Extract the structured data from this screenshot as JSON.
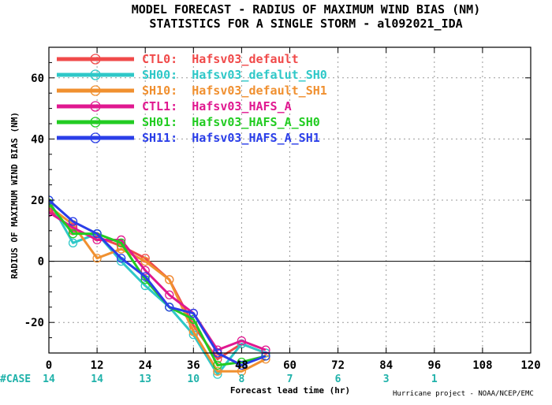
{
  "chart_data": {
    "type": "line",
    "title": "MODEL FORECAST - RADIUS OF MAXIMUM WIND BIAS (NM)",
    "subtitle": "STATISTICS FOR A SINGLE STORM - al092021_IDA",
    "xlabel": "Forecast lead time (hr)",
    "ylabel": "RADIUS OF MAXIMUM WIND BIAS (NM)",
    "xlim": [
      0,
      120
    ],
    "ylim": [
      -30,
      70
    ],
    "x_ticks": [
      "0",
      "12",
      "24",
      "36",
      "48",
      "60",
      "72",
      "84",
      "96",
      "108",
      "120"
    ],
    "y_ticks": [
      "-20",
      "0",
      "20",
      "40",
      "60"
    ],
    "grid": true,
    "legend_position": "top-left",
    "case_label": "#CASE",
    "case_counts": [
      {
        "x": 0,
        "n": "14"
      },
      {
        "x": 12,
        "n": "14"
      },
      {
        "x": 24,
        "n": "13"
      },
      {
        "x": 36,
        "n": "10"
      },
      {
        "x": 48,
        "n": "8"
      },
      {
        "x": 60,
        "n": "7"
      },
      {
        "x": 72,
        "n": "6"
      },
      {
        "x": 84,
        "n": "3"
      },
      {
        "x": 96,
        "n": "1"
      }
    ],
    "credit": "Hurricane project - NOAA/NCEP/EMC",
    "series": [
      {
        "name": "CTL0:  Hafsv03_default",
        "color": "#f04a4a",
        "x": [
          0,
          6,
          12,
          18,
          24,
          30,
          36,
          42,
          48,
          54
        ],
        "y": [
          17,
          10,
          8,
          5,
          1,
          -6,
          -21,
          -32,
          -27,
          -30
        ]
      },
      {
        "name": "SH00:  Hafsv03_defalut_SH0",
        "color": "#2fc8c8",
        "x": [
          0,
          6,
          12,
          18,
          24,
          30,
          36,
          42,
          48,
          54
        ],
        "y": [
          20,
          6,
          9,
          0,
          -8,
          -15,
          -24,
          -37,
          -27,
          -30
        ]
      },
      {
        "name": "SH10:  Hafsv03_default_SH1",
        "color": "#f09030",
        "x": [
          0,
          6,
          12,
          18,
          24,
          30,
          36,
          42,
          48,
          54
        ],
        "y": [
          18,
          12,
          1,
          4,
          0,
          -6,
          -23,
          -36,
          -36,
          -32
        ]
      },
      {
        "name": "CTL1:  Hafsv03_HAFS_A",
        "color": "#e01890",
        "x": [
          0,
          6,
          12,
          18,
          24,
          30,
          36,
          42,
          48,
          54
        ],
        "y": [
          16,
          11,
          7,
          7,
          -3,
          -11,
          -17,
          -29,
          -26,
          -29
        ]
      },
      {
        "name": "SH01:  Hafsv03_HAFS_A_SH0",
        "color": "#22cc22",
        "x": [
          0,
          6,
          12,
          18,
          24,
          30,
          36,
          42,
          48,
          54
        ],
        "y": [
          19,
          9,
          9,
          6,
          -6,
          -15,
          -19,
          -34,
          -33,
          -31
        ]
      },
      {
        "name": "SH11:  Hafsv03_HAFS_A_SH1",
        "color": "#2a3ee8",
        "x": [
          0,
          6,
          12,
          18,
          24,
          30,
          36,
          42,
          48,
          54
        ],
        "y": [
          20,
          13,
          9,
          1,
          -5,
          -15,
          -17,
          -30,
          -34,
          -31
        ]
      }
    ]
  }
}
